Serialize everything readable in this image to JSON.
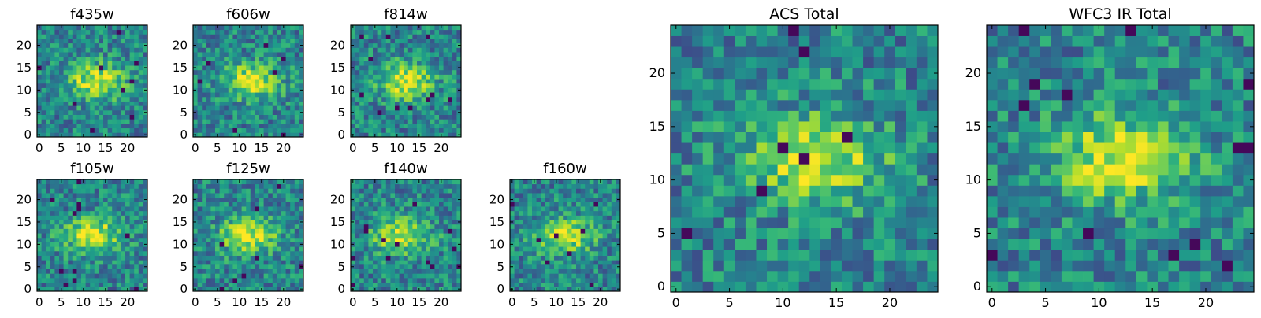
{
  "chart_data": [
    {
      "type": "heatmap",
      "title": "f435w",
      "xlabel": "",
      "ylabel": "",
      "xlim": [
        0,
        25
      ],
      "ylim": [
        0,
        25
      ],
      "xticks": [
        0,
        5,
        10,
        15,
        20
      ],
      "yticks": [
        0,
        5,
        10,
        15,
        20
      ],
      "grid": false,
      "colormap": "viridis",
      "peak": {
        "x": 13,
        "y": 12
      }
    },
    {
      "type": "heatmap",
      "title": "f606w",
      "xlabel": "",
      "ylabel": "",
      "xlim": [
        0,
        25
      ],
      "ylim": [
        0,
        25
      ],
      "xticks": [
        0,
        5,
        10,
        15,
        20
      ],
      "yticks": [
        0,
        5,
        10,
        15,
        20
      ],
      "grid": false,
      "colormap": "viridis",
      "peak": {
        "x": 13,
        "y": 12
      }
    },
    {
      "type": "heatmap",
      "title": "f814w",
      "xlabel": "",
      "ylabel": "",
      "xlim": [
        0,
        25
      ],
      "ylim": [
        0,
        25
      ],
      "xticks": [
        0,
        5,
        10,
        15,
        20
      ],
      "yticks": [
        0,
        5,
        10,
        15,
        20
      ],
      "grid": false,
      "colormap": "viridis",
      "peak": {
        "x": 12,
        "y": 12
      }
    },
    {
      "type": "heatmap",
      "title": "f105w",
      "xlabel": "",
      "ylabel": "",
      "xlim": [
        0,
        25
      ],
      "ylim": [
        0,
        25
      ],
      "xticks": [
        0,
        5,
        10,
        15,
        20
      ],
      "yticks": [
        0,
        5,
        10,
        15,
        20
      ],
      "grid": false,
      "colormap": "viridis",
      "peak": {
        "x": 12,
        "y": 12
      }
    },
    {
      "type": "heatmap",
      "title": "f125w",
      "xlabel": "",
      "ylabel": "",
      "xlim": [
        0,
        25
      ],
      "ylim": [
        0,
        25
      ],
      "xticks": [
        0,
        5,
        10,
        15,
        20
      ],
      "yticks": [
        0,
        5,
        10,
        15,
        20
      ],
      "grid": false,
      "colormap": "viridis",
      "peak": {
        "x": 12,
        "y": 12
      }
    },
    {
      "type": "heatmap",
      "title": "f140w",
      "xlabel": "",
      "ylabel": "",
      "xlim": [
        0,
        25
      ],
      "ylim": [
        0,
        25
      ],
      "xticks": [
        0,
        5,
        10,
        15,
        20
      ],
      "yticks": [
        0,
        5,
        10,
        15,
        20
      ],
      "grid": false,
      "colormap": "viridis",
      "peak": {
        "x": 11,
        "y": 12
      }
    },
    {
      "type": "heatmap",
      "title": "f160w",
      "xlabel": "",
      "ylabel": "",
      "xlim": [
        0,
        25
      ],
      "ylim": [
        0,
        25
      ],
      "xticks": [
        0,
        5,
        10,
        15,
        20
      ],
      "yticks": [
        0,
        5,
        10,
        15,
        20
      ],
      "grid": false,
      "colormap": "viridis",
      "peak": {
        "x": 12,
        "y": 12
      }
    },
    {
      "type": "heatmap",
      "title": "ACS Total",
      "xlabel": "",
      "ylabel": "",
      "xlim": [
        0,
        25
      ],
      "ylim": [
        0,
        25
      ],
      "xticks": [
        0,
        5,
        10,
        15,
        20
      ],
      "yticks": [
        0,
        5,
        10,
        15,
        20
      ],
      "grid": false,
      "colormap": "viridis",
      "peak": {
        "x": 13,
        "y": 12
      }
    },
    {
      "type": "heatmap",
      "title": "WFC3 IR Total",
      "xlabel": "",
      "ylabel": "",
      "xlim": [
        0,
        25
      ],
      "ylim": [
        0,
        25
      ],
      "xticks": [
        0,
        5,
        10,
        15,
        20
      ],
      "yticks": [
        0,
        5,
        10,
        15,
        20
      ],
      "grid": false,
      "colormap": "viridis",
      "peak": {
        "x": 12,
        "y": 12
      }
    }
  ]
}
